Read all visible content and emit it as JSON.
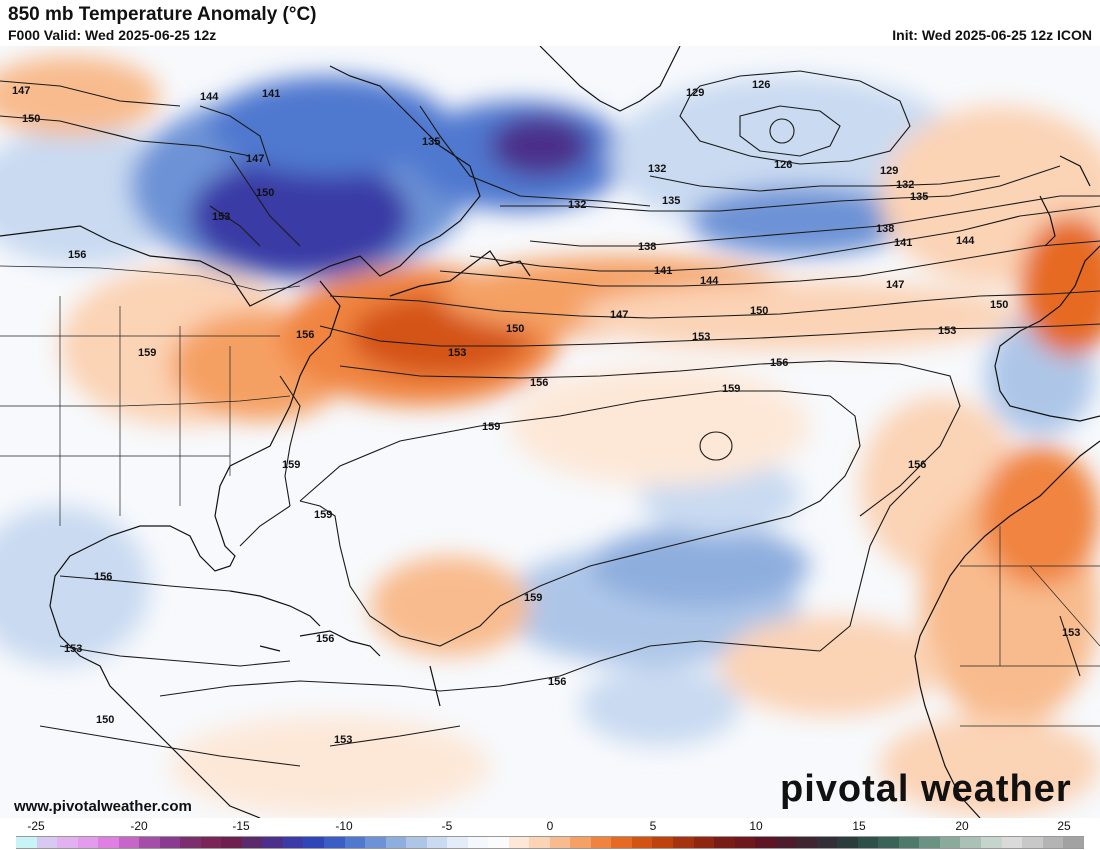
{
  "header": {
    "title": "850 mb Temperature Anomaly (°C)",
    "valid": "F000 Valid: Wed 2025-06-25 12z",
    "init": "Init: Wed 2025-06-25 12z ICON"
  },
  "footer": {
    "website": "www.pivotalweather.com",
    "brand": "pivotal weather"
  },
  "colorbar": {
    "labels": [
      "-25",
      "-20",
      "-15",
      "-10",
      "-5",
      "0",
      "5",
      "10",
      "15",
      "20",
      "25"
    ],
    "colors": [
      "#c9f4f7",
      "#d7c9f2",
      "#e1b2ef",
      "#e39ceb",
      "#e07fe3",
      "#c766c9",
      "#a44ea8",
      "#8a3a8f",
      "#7c2d6e",
      "#7a2458",
      "#6e1f4f",
      "#5a2a6a",
      "#4c2f8a",
      "#3b3aa6",
      "#2f46b8",
      "#3a5dc6",
      "#4f78cf",
      "#6d93d6",
      "#8eaede",
      "#adc6e8",
      "#c9daf1",
      "#e3ecf8",
      "#f4f7fc",
      "#fbfbfb",
      "#fde8d8",
      "#fbd3b5",
      "#f8bb8d",
      "#f5a064",
      "#f0843f",
      "#e66a22",
      "#d45313",
      "#bd420c",
      "#a5330d",
      "#8f2610",
      "#7a1c16",
      "#6e171d",
      "#5e1424",
      "#4d1c2c",
      "#3f2530",
      "#323036",
      "#2a3d3c",
      "#2f4f49",
      "#3a6358",
      "#4e7a6c",
      "#6a9383",
      "#8aab9c",
      "#aac1b7",
      "#c6d4ce",
      "#dadada",
      "#c8c8c8",
      "#b4b4b4",
      "#a2a2a2"
    ],
    "units": "°C"
  },
  "contours": {
    "labels": [
      "147",
      "150",
      "144",
      "141",
      "147",
      "150",
      "153",
      "135",
      "156",
      "132",
      "129",
      "126",
      "126",
      "129",
      "132",
      "135",
      "132",
      "135",
      "138",
      "138",
      "141",
      "141",
      "144",
      "144",
      "147",
      "147",
      "150",
      "150",
      "150",
      "153",
      "153",
      "153",
      "156",
      "156",
      "156",
      "156",
      "159",
      "159",
      "159",
      "159",
      "159",
      "159",
      "156",
      "156",
      "156",
      "153",
      "153",
      "150",
      "153"
    ]
  }
}
